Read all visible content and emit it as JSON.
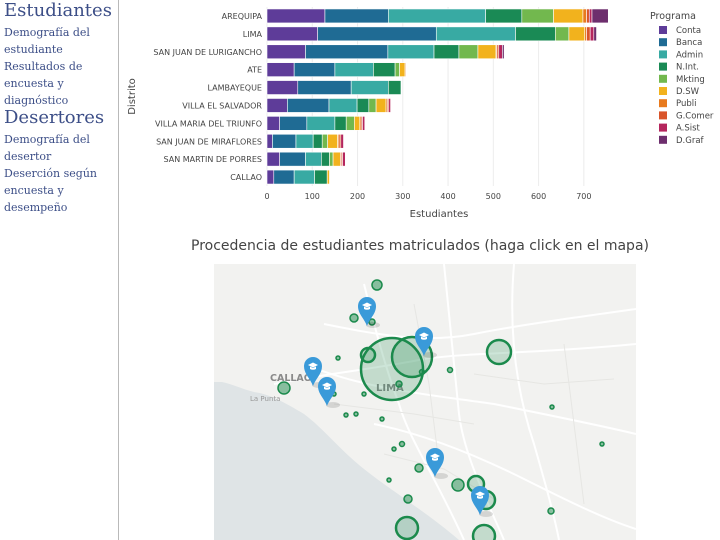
{
  "sidebar": {
    "estudiantes": {
      "title": "Estudiantes",
      "links": [
        "Demografía del estudiante",
        "Resultados de encuesta y diagnóstico"
      ]
    },
    "desertores": {
      "title": "Desertores",
      "links": [
        "Demografía del desertor",
        "Deserción según encuesta y desempeño"
      ]
    }
  },
  "chart_data": {
    "type": "bar",
    "orientation": "horizontal",
    "stacked": true,
    "title": "",
    "xlabel": "Estudiantes",
    "ylabel": "Distrito",
    "xlim": [
      0,
      760
    ],
    "xticks": [
      0,
      100,
      200,
      300,
      400,
      500,
      600,
      700
    ],
    "grid": true,
    "legend_title": "Programa",
    "legend_position": "right",
    "categories": [
      "AREQUIPA",
      "LIMA",
      "SAN JUAN DE LURIGANCHO",
      "ATE",
      "LAMBAYEQUE",
      "VILLA EL SALVADOR",
      "VILLA MARIA DEL TRIUNFO",
      "SAN JUAN DE MIRAFLORES",
      "SAN MARTIN DE PORRES",
      "CALLAO"
    ],
    "series": [
      {
        "name": "Conta",
        "color": "#5e3c99",
        "values": [
          128,
          112,
          85,
          60,
          68,
          45,
          28,
          12,
          28,
          15
        ]
      },
      {
        "name": "Banca",
        "color": "#1f6b94",
        "values": [
          140,
          262,
          182,
          90,
          118,
          92,
          60,
          52,
          57,
          45
        ]
      },
      {
        "name": "Admin",
        "color": "#38aaa3",
        "values": [
          215,
          175,
          102,
          85,
          82,
          62,
          62,
          38,
          35,
          45
        ]
      },
      {
        "name": "N.Int.",
        "color": "#1a8a55",
        "values": [
          80,
          88,
          55,
          48,
          28,
          26,
          25,
          20,
          18,
          28
        ]
      },
      {
        "name": "Mkting",
        "color": "#72b84e",
        "values": [
          70,
          30,
          42,
          10,
          0,
          16,
          18,
          12,
          8,
          0
        ]
      },
      {
        "name": "D.SW",
        "color": "#f2b21d",
        "values": [
          65,
          35,
          40,
          12,
          0,
          22,
          12,
          22,
          16,
          5
        ]
      },
      {
        "name": "Publi",
        "color": "#e87a1e",
        "values": [
          8,
          4,
          2,
          2,
          0,
          3,
          3,
          3,
          2,
          0
        ]
      },
      {
        "name": "G.Comer",
        "color": "#d9542a",
        "values": [
          6,
          8,
          4,
          0,
          0,
          3,
          3,
          4,
          3,
          0
        ]
      },
      {
        "name": "A.Sist",
        "color": "#b5265d",
        "values": [
          6,
          8,
          8,
          0,
          0,
          4,
          5,
          6,
          6,
          0
        ]
      },
      {
        "name": "D.Graf",
        "color": "#6d2e6d",
        "values": [
          36,
          6,
          4,
          0,
          0,
          0,
          0,
          0,
          0,
          0
        ]
      }
    ]
  },
  "map": {
    "title": "Procedencia de estudiantes matriculados (haga click en el mapa)",
    "place_labels": [
      "CALLAO",
      "LIMA",
      "La Punta"
    ],
    "marker_icon": "graduation-cap-icon",
    "accent_color": "#1b8a4c",
    "pin_color": "#3a9ad9"
  }
}
